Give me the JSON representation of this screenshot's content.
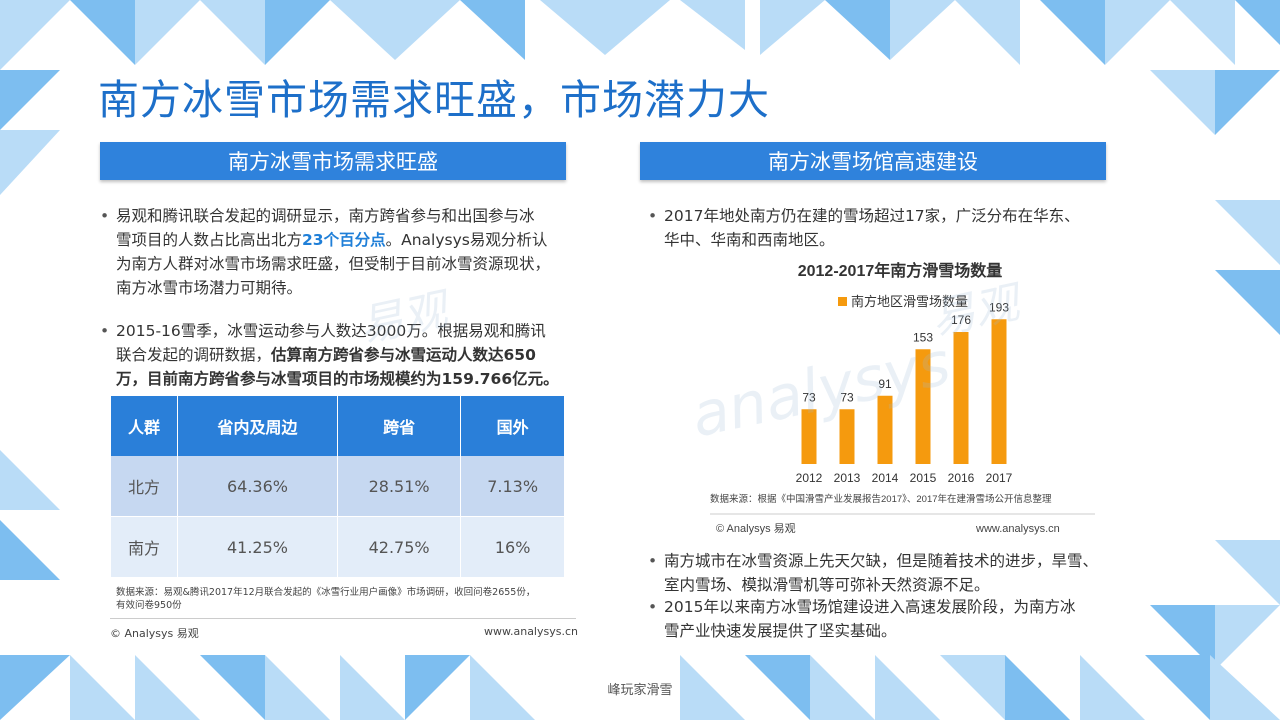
{
  "title": "南方冰雪市场需求旺盛，市场潜力大",
  "left": {
    "header": "南方冰雪市场需求旺盛",
    "bullet1": {
      "line1": "易观和腾讯联合发起的调研显示，南方跨省参与和出国参与冰",
      "line2a": "雪项目的人数占比高出北方",
      "line2b": "23个百分点",
      "line2c": "。Analysys易观分析认",
      "line3": "为南方人群对冰雪市场需求旺盛，但受制于目前冰雪资源现状，",
      "line4": "南方冰雪市场潜力可期待。"
    },
    "bullet2": {
      "line1": "2015-16雪季，冰雪运动参与人数达3000万。根据易观和腾讯",
      "line2a": "联合发起的调研数据，",
      "line2b": "估算南方跨省参与冰雪运动人数达650",
      "line3": "万，目前南方跨省参与冰雪项目的市场规模约为159.766亿元。"
    },
    "table": {
      "headers": [
        "人群",
        "省内及周边",
        "跨省",
        "国外"
      ],
      "rows": [
        [
          "北方",
          "64.36%",
          "28.51%",
          "7.13%"
        ],
        [
          "南方",
          "41.25%",
          "42.75%",
          "16%"
        ]
      ]
    },
    "source_line1": "数据来源：易观&腾讯2017年12月联合发起的《冰雪行业用户画像》市场调研，收回问卷2655份，",
    "source_line2": "有效问卷950份",
    "copyright": "© Analysys 易观",
    "website": "www.analysys.cn"
  },
  "right": {
    "header": "南方冰雪场馆高速建设",
    "bullet1": {
      "line1": "2017年地处南方仍在建的雪场超过17家，广泛分布在华东、",
      "line2": "华中、华南和西南地区。"
    },
    "source": "数据来源：根据《中国滑雪产业发展报告2017》、2017年在建滑雪场公开信息整理",
    "copyright": "© Analysys 易观",
    "website": "www.analysys.cn",
    "bullet2": {
      "line1": "南方城市在冰雪资源上先天欠缺，但是随着技术的进步，旱雪、",
      "line2": "室内雪场、模拟滑雪机等可弥补天然资源不足。"
    },
    "bullet3": {
      "line1": "2015年以来南方冰雪场馆建设进入高速发展阶段，为南方冰",
      "line2": "雪产业快速发展提供了坚实基础。"
    }
  },
  "chart_data": {
    "type": "bar",
    "title": "2012-2017年南方滑雪场数量",
    "categories": [
      "2012",
      "2013",
      "2014",
      "2015",
      "2016",
      "2017"
    ],
    "series": [
      {
        "name": "南方地区滑雪场数量",
        "values": [
          73,
          73,
          91,
          153,
          176,
          193
        ]
      }
    ],
    "ylim": [
      0,
      200
    ],
    "grid": false,
    "legend": "top-center",
    "color": "#f59a0e"
  },
  "footer_caption": "峰玩家滑雪",
  "watermark_cn": "易观",
  "watermark_en": "analysys",
  "colors": {
    "title": "#1d6fc9",
    "band": "#2f82dc",
    "tri_light": "#b9dcf7",
    "tri_mid": "#7dbef0"
  }
}
